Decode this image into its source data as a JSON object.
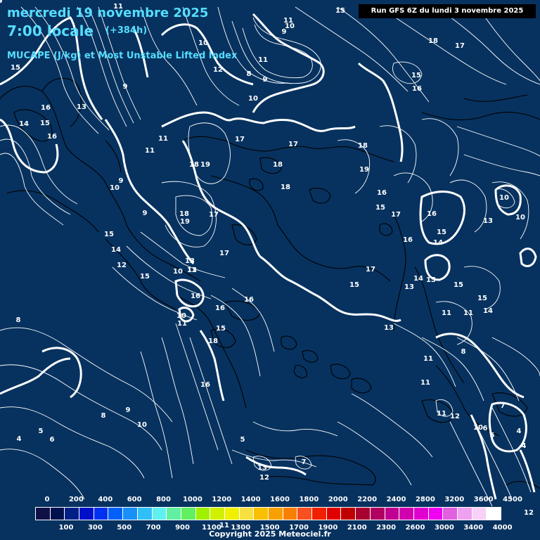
{
  "header": {
    "date": "mercredi 19 novembre 2025",
    "time": "7:00 locale",
    "forecast_hour": "(+384h)",
    "parameter": "MUCAPE (J/kg) et Most Unstable Lifted Index"
  },
  "run_info": "Run GFS 6Z du lundi 3 novembre 2025",
  "copyright": "Copyright 2025 Meteociel.fr",
  "colors": {
    "background": "#07325f",
    "title_text": "#55ddff",
    "contour": "#ffffff",
    "coastline": "#000000"
  },
  "legend": {
    "upper_ticks": [
      "0",
      "200",
      "400",
      "600",
      "800",
      "1000",
      "1200",
      "1400",
      "1600",
      "1800",
      "2000",
      "2200",
      "2400",
      "2800",
      "3200",
      "3600",
      "4500"
    ],
    "lower_ticks": [
      "100",
      "300",
      "500",
      "700",
      "900",
      "1100",
      "1300",
      "1500",
      "1700",
      "1900",
      "2100",
      "2300",
      "2600",
      "3000",
      "3400",
      "4000"
    ],
    "colors": [
      "#101048",
      "#00104e",
      "#002088",
      "#0010c8",
      "#0030f0",
      "#0060f8",
      "#1890f8",
      "#30c0f8",
      "#60f0f0",
      "#60f0a0",
      "#60f060",
      "#a0f000",
      "#d0f000",
      "#f0f000",
      "#f8e040",
      "#f8c000",
      "#f8a000",
      "#f88000",
      "#f85020",
      "#f02000",
      "#e00000",
      "#c00000",
      "#a80030",
      "#b00060",
      "#c00090",
      "#d000b0",
      "#e000d0",
      "#f000f0",
      "#e060e0",
      "#f0a0f0",
      "#f8d0f8",
      "#ffffff"
    ]
  },
  "lifted_index_labels": [
    {
      "v": "11"
    },
    {
      "v": "15"
    },
    {
      "v": "11"
    },
    {
      "v": "10"
    },
    {
      "v": "9"
    },
    {
      "v": "18"
    },
    {
      "v": "17"
    },
    {
      "v": "15"
    },
    {
      "v": "10"
    },
    {
      "v": "12"
    },
    {
      "v": "8"
    },
    {
      "v": "9"
    },
    {
      "v": "11"
    },
    {
      "v": "15"
    },
    {
      "v": "16"
    },
    {
      "v": "9"
    },
    {
      "v": "10"
    },
    {
      "v": "16"
    },
    {
      "v": "13"
    },
    {
      "v": "14"
    },
    {
      "v": "15"
    },
    {
      "v": "16"
    },
    {
      "v": "11"
    },
    {
      "v": "11"
    },
    {
      "v": "17"
    },
    {
      "v": "17"
    },
    {
      "v": "18"
    },
    {
      "v": "19"
    },
    {
      "v": "18"
    },
    {
      "v": "18"
    },
    {
      "v": "19"
    },
    {
      "v": "18"
    },
    {
      "v": "13"
    },
    {
      "v": "10"
    },
    {
      "v": "9"
    },
    {
      "v": "16"
    },
    {
      "v": "15"
    },
    {
      "v": "17"
    },
    {
      "v": "16"
    },
    {
      "v": "10"
    },
    {
      "v": "9"
    },
    {
      "v": "18"
    },
    {
      "v": "19"
    },
    {
      "v": "17"
    },
    {
      "v": "13"
    },
    {
      "v": "15"
    },
    {
      "v": "14"
    },
    {
      "v": "15"
    },
    {
      "v": "16"
    },
    {
      "v": "14"
    },
    {
      "v": "10"
    },
    {
      "v": "17"
    },
    {
      "v": "12"
    },
    {
      "v": "13"
    },
    {
      "v": "15"
    },
    {
      "v": "10"
    },
    {
      "v": "12"
    },
    {
      "v": "17"
    },
    {
      "v": "15"
    },
    {
      "v": "15"
    },
    {
      "v": "13"
    },
    {
      "v": "15"
    },
    {
      "v": "15"
    },
    {
      "v": "14"
    },
    {
      "v": "16"
    },
    {
      "v": "16"
    },
    {
      "v": "16"
    },
    {
      "v": "10"
    },
    {
      "v": "11"
    },
    {
      "v": "15"
    },
    {
      "v": "11"
    },
    {
      "v": "11"
    },
    {
      "v": "14"
    },
    {
      "v": "13"
    },
    {
      "v": "18"
    },
    {
      "v": "8"
    },
    {
      "v": "8"
    },
    {
      "v": "11"
    },
    {
      "v": "16"
    },
    {
      "v": "11"
    },
    {
      "v": "8"
    },
    {
      "v": "9"
    },
    {
      "v": "10"
    },
    {
      "v": "7"
    },
    {
      "v": "6"
    },
    {
      "v": "5"
    },
    {
      "v": "4"
    },
    {
      "v": "4"
    },
    {
      "v": "11"
    },
    {
      "v": "12"
    },
    {
      "v": "10"
    },
    {
      "v": "6"
    },
    {
      "v": "5"
    },
    {
      "v": "4"
    },
    {
      "v": "5"
    },
    {
      "v": "7"
    },
    {
      "v": "13"
    },
    {
      "v": "12"
    },
    {
      "v": "11"
    },
    {
      "v": "12"
    },
    {
      "v": "9"
    },
    {
      "v": "8"
    }
  ]
}
